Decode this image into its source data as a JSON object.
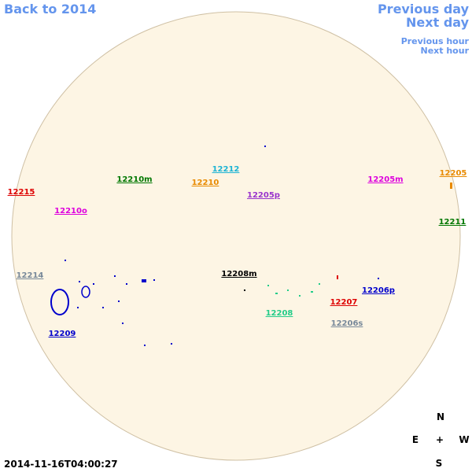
{
  "navigation": {
    "back": "Back to 2014",
    "previous_day": "Previous day",
    "next_day": "Next day",
    "previous_hour": "Previous hour",
    "next_hour": "Next hour"
  },
  "regions": [
    "12215",
    "12210m",
    "12212",
    "12210",
    "12205p",
    "12205m",
    "12205",
    "12211",
    "12210o",
    "12214",
    "12208m",
    "12206p",
    "12207",
    "12208",
    "12206s",
    "12209"
  ],
  "compass": {
    "north": "N",
    "east": "E",
    "center": "+",
    "west": "W",
    "south": "S"
  },
  "timestamp": "2014-11-16T04:00:27"
}
